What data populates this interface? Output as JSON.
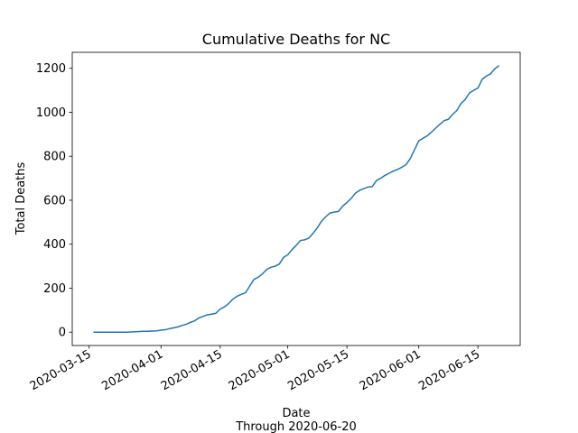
{
  "chart_data": {
    "type": "line",
    "title": "Cumulative Deaths for NC",
    "xlabel": "Date",
    "note": "Through 2020-06-20",
    "ylabel": "Total Deaths",
    "x": [
      "2020-03-16",
      "2020-03-17",
      "2020-03-18",
      "2020-03-19",
      "2020-03-20",
      "2020-03-21",
      "2020-03-22",
      "2020-03-23",
      "2020-03-24",
      "2020-03-25",
      "2020-03-26",
      "2020-03-27",
      "2020-03-28",
      "2020-03-29",
      "2020-03-30",
      "2020-03-31",
      "2020-04-01",
      "2020-04-02",
      "2020-04-03",
      "2020-04-04",
      "2020-04-05",
      "2020-04-06",
      "2020-04-07",
      "2020-04-08",
      "2020-04-09",
      "2020-04-10",
      "2020-04-11",
      "2020-04-12",
      "2020-04-13",
      "2020-04-14",
      "2020-04-15",
      "2020-04-16",
      "2020-04-17",
      "2020-04-18",
      "2020-04-19",
      "2020-04-20",
      "2020-04-21",
      "2020-04-22",
      "2020-04-23",
      "2020-04-24",
      "2020-04-25",
      "2020-04-26",
      "2020-04-27",
      "2020-04-28",
      "2020-04-29",
      "2020-04-30",
      "2020-05-01",
      "2020-05-02",
      "2020-05-03",
      "2020-05-04",
      "2020-05-05",
      "2020-05-06",
      "2020-05-07",
      "2020-05-08",
      "2020-05-09",
      "2020-05-10",
      "2020-05-11",
      "2020-05-12",
      "2020-05-13",
      "2020-05-14",
      "2020-05-15",
      "2020-05-16",
      "2020-05-17",
      "2020-05-18",
      "2020-05-19",
      "2020-05-20",
      "2020-05-21",
      "2020-05-22",
      "2020-05-23",
      "2020-05-24",
      "2020-05-25",
      "2020-05-26",
      "2020-05-27",
      "2020-05-28",
      "2020-05-29",
      "2020-05-30",
      "2020-05-31",
      "2020-06-01",
      "2020-06-02",
      "2020-06-03",
      "2020-06-04",
      "2020-06-05",
      "2020-06-06",
      "2020-06-07",
      "2020-06-08",
      "2020-06-09",
      "2020-06-10",
      "2020-06-11",
      "2020-06-12",
      "2020-06-13",
      "2020-06-14",
      "2020-06-15",
      "2020-06-16",
      "2020-06-17",
      "2020-06-18",
      "2020-06-19",
      "2020-06-20"
    ],
    "series": [
      {
        "name": "Deaths",
        "color": "#1f77b4",
        "values": [
          0,
          0,
          0,
          0,
          0,
          0,
          0,
          0,
          0,
          1,
          2,
          3,
          4,
          4,
          5,
          6,
          9,
          11,
          16,
          20,
          24,
          31,
          36,
          45,
          52,
          65,
          72,
          79,
          82,
          86,
          105,
          115,
          130,
          150,
          163,
          172,
          179,
          210,
          240,
          250,
          265,
          285,
          295,
          300,
          310,
          340,
          352,
          375,
          395,
          417,
          420,
          428,
          450,
          475,
          505,
          525,
          542,
          546,
          549,
          573,
          590,
          608,
          632,
          645,
          653,
          660,
          662,
          690,
          700,
          713,
          723,
          733,
          740,
          750,
          762,
          790,
          830,
          870,
          882,
          893,
          910,
          928,
          945,
          962,
          968,
          990,
          1008,
          1040,
          1058,
          1088,
          1100,
          1110,
          1150,
          1165,
          1175,
          1198,
          1212
        ]
      }
    ],
    "xlim": [
      "2020-03-11",
      "2020-06-25"
    ],
    "xticks": [
      "2020-03-15",
      "2020-04-01",
      "2020-04-15",
      "2020-05-01",
      "2020-05-15",
      "2020-06-01",
      "2020-06-15"
    ],
    "ylim": [
      -60.6,
      1272.6
    ],
    "yticks": [
      0,
      200,
      400,
      600,
      800,
      1000,
      1200
    ],
    "grid": false
  }
}
